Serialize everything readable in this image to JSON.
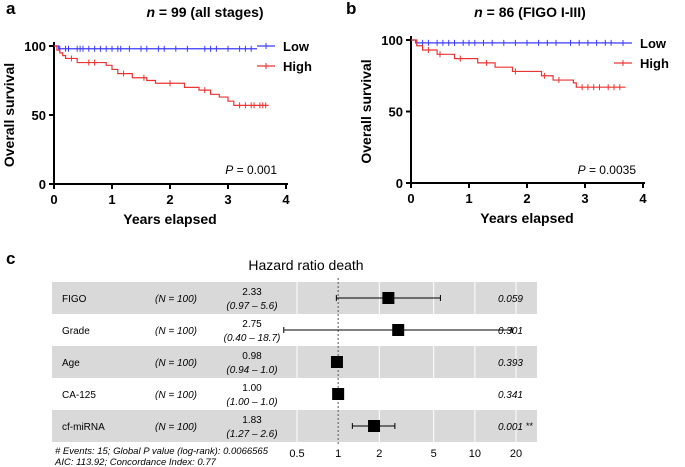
{
  "colors": {
    "low": "#3b3bff",
    "high": "#ee3333",
    "band": "#d9d9d9",
    "grid": "#ffffff",
    "axis": "#000000",
    "marker": "#000000"
  },
  "panel_a": {
    "letter": "a",
    "title_n": "n",
    "title_rest": " = 99 (all stages)",
    "p_label": "P",
    "p_value": " = 0.001"
  },
  "panel_b": {
    "letter": "b",
    "title_n": "n",
    "title_rest": " = 86 (FIGO I-III)",
    "p_label": "P",
    "p_value": " = 0.0035"
  },
  "panel_c": {
    "letter": "c",
    "title": "Hazard ratio death",
    "footnote_1": "# Events: 15; Global P value (log-rank): 0.0066565",
    "footnote_2": "AIC: 113.92; Concordance Index: 0.77",
    "significance": "**"
  },
  "chart_data": [
    {
      "type": "line",
      "subtype": "kaplan-meier",
      "panel": "a",
      "title": "n = 99 (all stages)",
      "xlabel": "Years elapsed",
      "ylabel": "Overall survival",
      "xlim": [
        0,
        4
      ],
      "ylim": [
        0,
        100
      ],
      "xticks": [
        "0",
        "1",
        "2",
        "3",
        "4"
      ],
      "yticks": [
        "0",
        "50",
        "100"
      ],
      "legend": "top-right",
      "annotation": "P = 0.001",
      "series": [
        {
          "name": "Low",
          "color": "#3b3bff",
          "steps": [
            [
              0,
              100
            ],
            [
              0.08,
              98
            ],
            [
              3.5,
              98
            ]
          ],
          "censors": [
            0.1,
            0.2,
            0.25,
            0.4,
            0.45,
            0.5,
            0.6,
            0.7,
            0.8,
            0.9,
            1.0,
            1.1,
            1.15,
            1.3,
            1.5,
            1.6,
            1.8,
            1.9,
            2.1,
            2.3,
            2.6,
            2.7,
            2.8,
            3.0,
            3.2,
            3.3,
            3.4
          ]
        },
        {
          "name": "High",
          "color": "#ee3333",
          "steps": [
            [
              0,
              100
            ],
            [
              0.05,
              97
            ],
            [
              0.1,
              95
            ],
            [
              0.15,
              93
            ],
            [
              0.2,
              91
            ],
            [
              0.4,
              88
            ],
            [
              0.9,
              86
            ],
            [
              1.0,
              83
            ],
            [
              1.1,
              80
            ],
            [
              1.35,
              77
            ],
            [
              1.6,
              75
            ],
            [
              1.75,
              73
            ],
            [
              2.25,
              70
            ],
            [
              2.5,
              68
            ],
            [
              2.7,
              65
            ],
            [
              2.85,
              63
            ],
            [
              3.0,
              60
            ],
            [
              3.1,
              57
            ],
            [
              3.7,
              57
            ]
          ],
          "censors": [
            0.3,
            0.6,
            0.7,
            1.2,
            1.55,
            2.0,
            2.6,
            3.2,
            3.3,
            3.4,
            3.45,
            3.55,
            3.6,
            3.65
          ]
        }
      ]
    },
    {
      "type": "line",
      "subtype": "kaplan-meier",
      "panel": "b",
      "title": "n = 86 (FIGO I-III)",
      "xlabel": "Years elapsed",
      "ylabel": "Overall survival",
      "xlim": [
        0,
        4
      ],
      "ylim": [
        0,
        100
      ],
      "xticks": [
        "0",
        "1",
        "2",
        "3",
        "4"
      ],
      "yticks": [
        "0",
        "50",
        "100"
      ],
      "legend": "top-right",
      "annotation": "P = 0.0035",
      "series": [
        {
          "name": "Low",
          "color": "#3b3bff",
          "steps": [
            [
              0,
              100
            ],
            [
              0.08,
              98
            ],
            [
              3.5,
              98
            ]
          ],
          "censors": [
            0.1,
            0.2,
            0.3,
            0.45,
            0.55,
            0.65,
            0.75,
            0.9,
            1.0,
            1.1,
            1.25,
            1.4,
            1.6,
            1.8,
            2.0,
            2.2,
            2.35,
            2.5,
            2.75,
            2.9,
            3.05,
            3.2,
            3.35,
            3.45
          ]
        },
        {
          "name": "High",
          "color": "#ee3333",
          "steps": [
            [
              0,
              100
            ],
            [
              0.1,
              96
            ],
            [
              0.2,
              93
            ],
            [
              0.45,
              90
            ],
            [
              0.75,
              87
            ],
            [
              1.15,
              84
            ],
            [
              1.45,
              81
            ],
            [
              1.75,
              78
            ],
            [
              2.25,
              75
            ],
            [
              2.45,
              72
            ],
            [
              2.8,
              70
            ],
            [
              2.85,
              67
            ],
            [
              3.7,
              67
            ]
          ],
          "censors": [
            0.3,
            0.5,
            0.85,
            1.3,
            1.8,
            2.3,
            2.55,
            2.95,
            3.05,
            3.15,
            3.25,
            3.4,
            3.5,
            3.6
          ]
        }
      ]
    },
    {
      "type": "forest",
      "panel": "c",
      "title": "Hazard ratio death",
      "xscale": "log",
      "xlim": [
        0.4,
        25
      ],
      "reference": 1,
      "xticks": [
        0.5,
        1,
        2,
        5,
        10,
        20
      ],
      "xtick_labels": [
        "0.5",
        "1",
        "2",
        "5",
        "10",
        "20"
      ],
      "rows": [
        {
          "name": "FIGO",
          "n": "(N = 100)",
          "hr_text": "2.33",
          "ci_text": "(0.97 – 5.6)",
          "hr": 2.33,
          "lo": 0.97,
          "hi": 5.6,
          "p": "0.059",
          "shaded": true,
          "sig": ""
        },
        {
          "name": "Grade",
          "n": "(N = 100)",
          "hr_text": "2.75",
          "ci_text": "(0.40 – 18.7)",
          "hr": 2.75,
          "lo": 0.4,
          "hi": 18.7,
          "p": "0.301",
          "shaded": false,
          "sig": ""
        },
        {
          "name": "Age",
          "n": "(N = 100)",
          "hr_text": "0.98",
          "ci_text": "(0.94 – 1.0)",
          "hr": 0.98,
          "lo": 0.94,
          "hi": 1.0,
          "p": "0.393",
          "shaded": true,
          "sig": ""
        },
        {
          "name": "CA-125",
          "n": "(N = 100)",
          "hr_text": "1.00",
          "ci_text": "(1.00 – 1.0)",
          "hr": 1.0,
          "lo": 1.0,
          "hi": 1.0,
          "p": "0.341",
          "shaded": false,
          "sig": ""
        },
        {
          "name": "cf-miRNA",
          "n": "(N = 100)",
          "hr_text": "1.83",
          "ci_text": "(1.27 – 2.6)",
          "hr": 1.83,
          "lo": 1.27,
          "hi": 2.6,
          "p": "0.001",
          "shaded": true,
          "sig": "**"
        }
      ]
    }
  ]
}
